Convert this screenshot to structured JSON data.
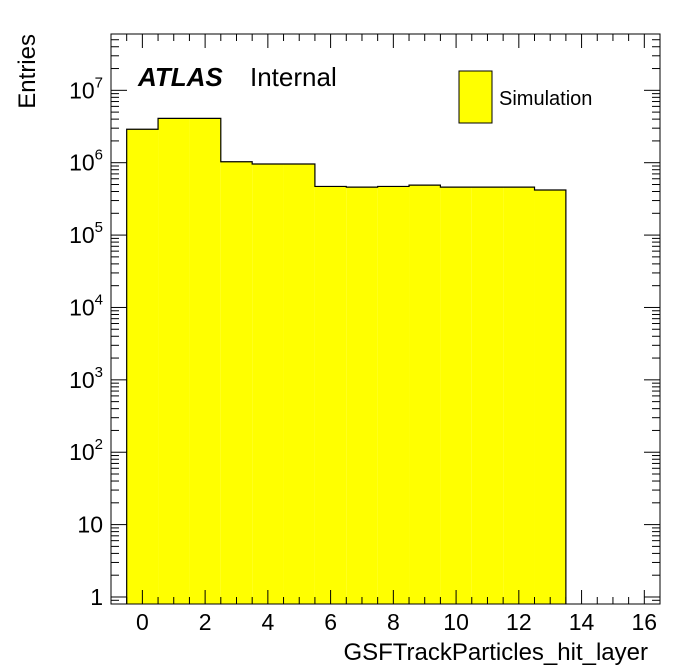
{
  "chart_data": {
    "type": "bar",
    "histogram": true,
    "xlabel": "GSFTrackParticles_hit_layer",
    "ylabel": "Entries",
    "xlim": [
      -1,
      16.5
    ],
    "ylim": [
      0.8,
      60000000
    ],
    "yscale": "log",
    "grid": false,
    "legend_position": "top-right",
    "bin_edges": [
      -0.5,
      0.5,
      1.5,
      2.5,
      3.5,
      4.5,
      5.5,
      6.5,
      7.5,
      8.5,
      9.5,
      10.5,
      11.5,
      12.5,
      13.5
    ],
    "values": [
      2900000,
      4100000,
      4100000,
      1030000,
      960000,
      960000,
      470000,
      460000,
      470000,
      490000,
      460000,
      460000,
      460000,
      420000
    ],
    "xticks": [
      0,
      2,
      4,
      6,
      8,
      10,
      12,
      14,
      16
    ],
    "xtick_labels": [
      "0",
      "2",
      "4",
      "6",
      "8",
      "10",
      "12",
      "14",
      "16"
    ],
    "yticks": [
      {
        "value": 1,
        "base": "1",
        "exp": ""
      },
      {
        "value": 10,
        "base": "10",
        "exp": ""
      },
      {
        "value": 100,
        "base": "10",
        "exp": "2"
      },
      {
        "value": 1000,
        "base": "10",
        "exp": "3"
      },
      {
        "value": 10000,
        "base": "10",
        "exp": "4"
      },
      {
        "value": 100000,
        "base": "10",
        "exp": "5"
      },
      {
        "value": 1000000,
        "base": "10",
        "exp": "6"
      },
      {
        "value": 10000000,
        "base": "10",
        "exp": "7"
      }
    ],
    "series": [
      {
        "name": "Simulation",
        "color": "#ffff00",
        "edge_color": "#000000"
      }
    ]
  },
  "labels": {
    "atlas": "ATLAS",
    "status": "Internal"
  }
}
